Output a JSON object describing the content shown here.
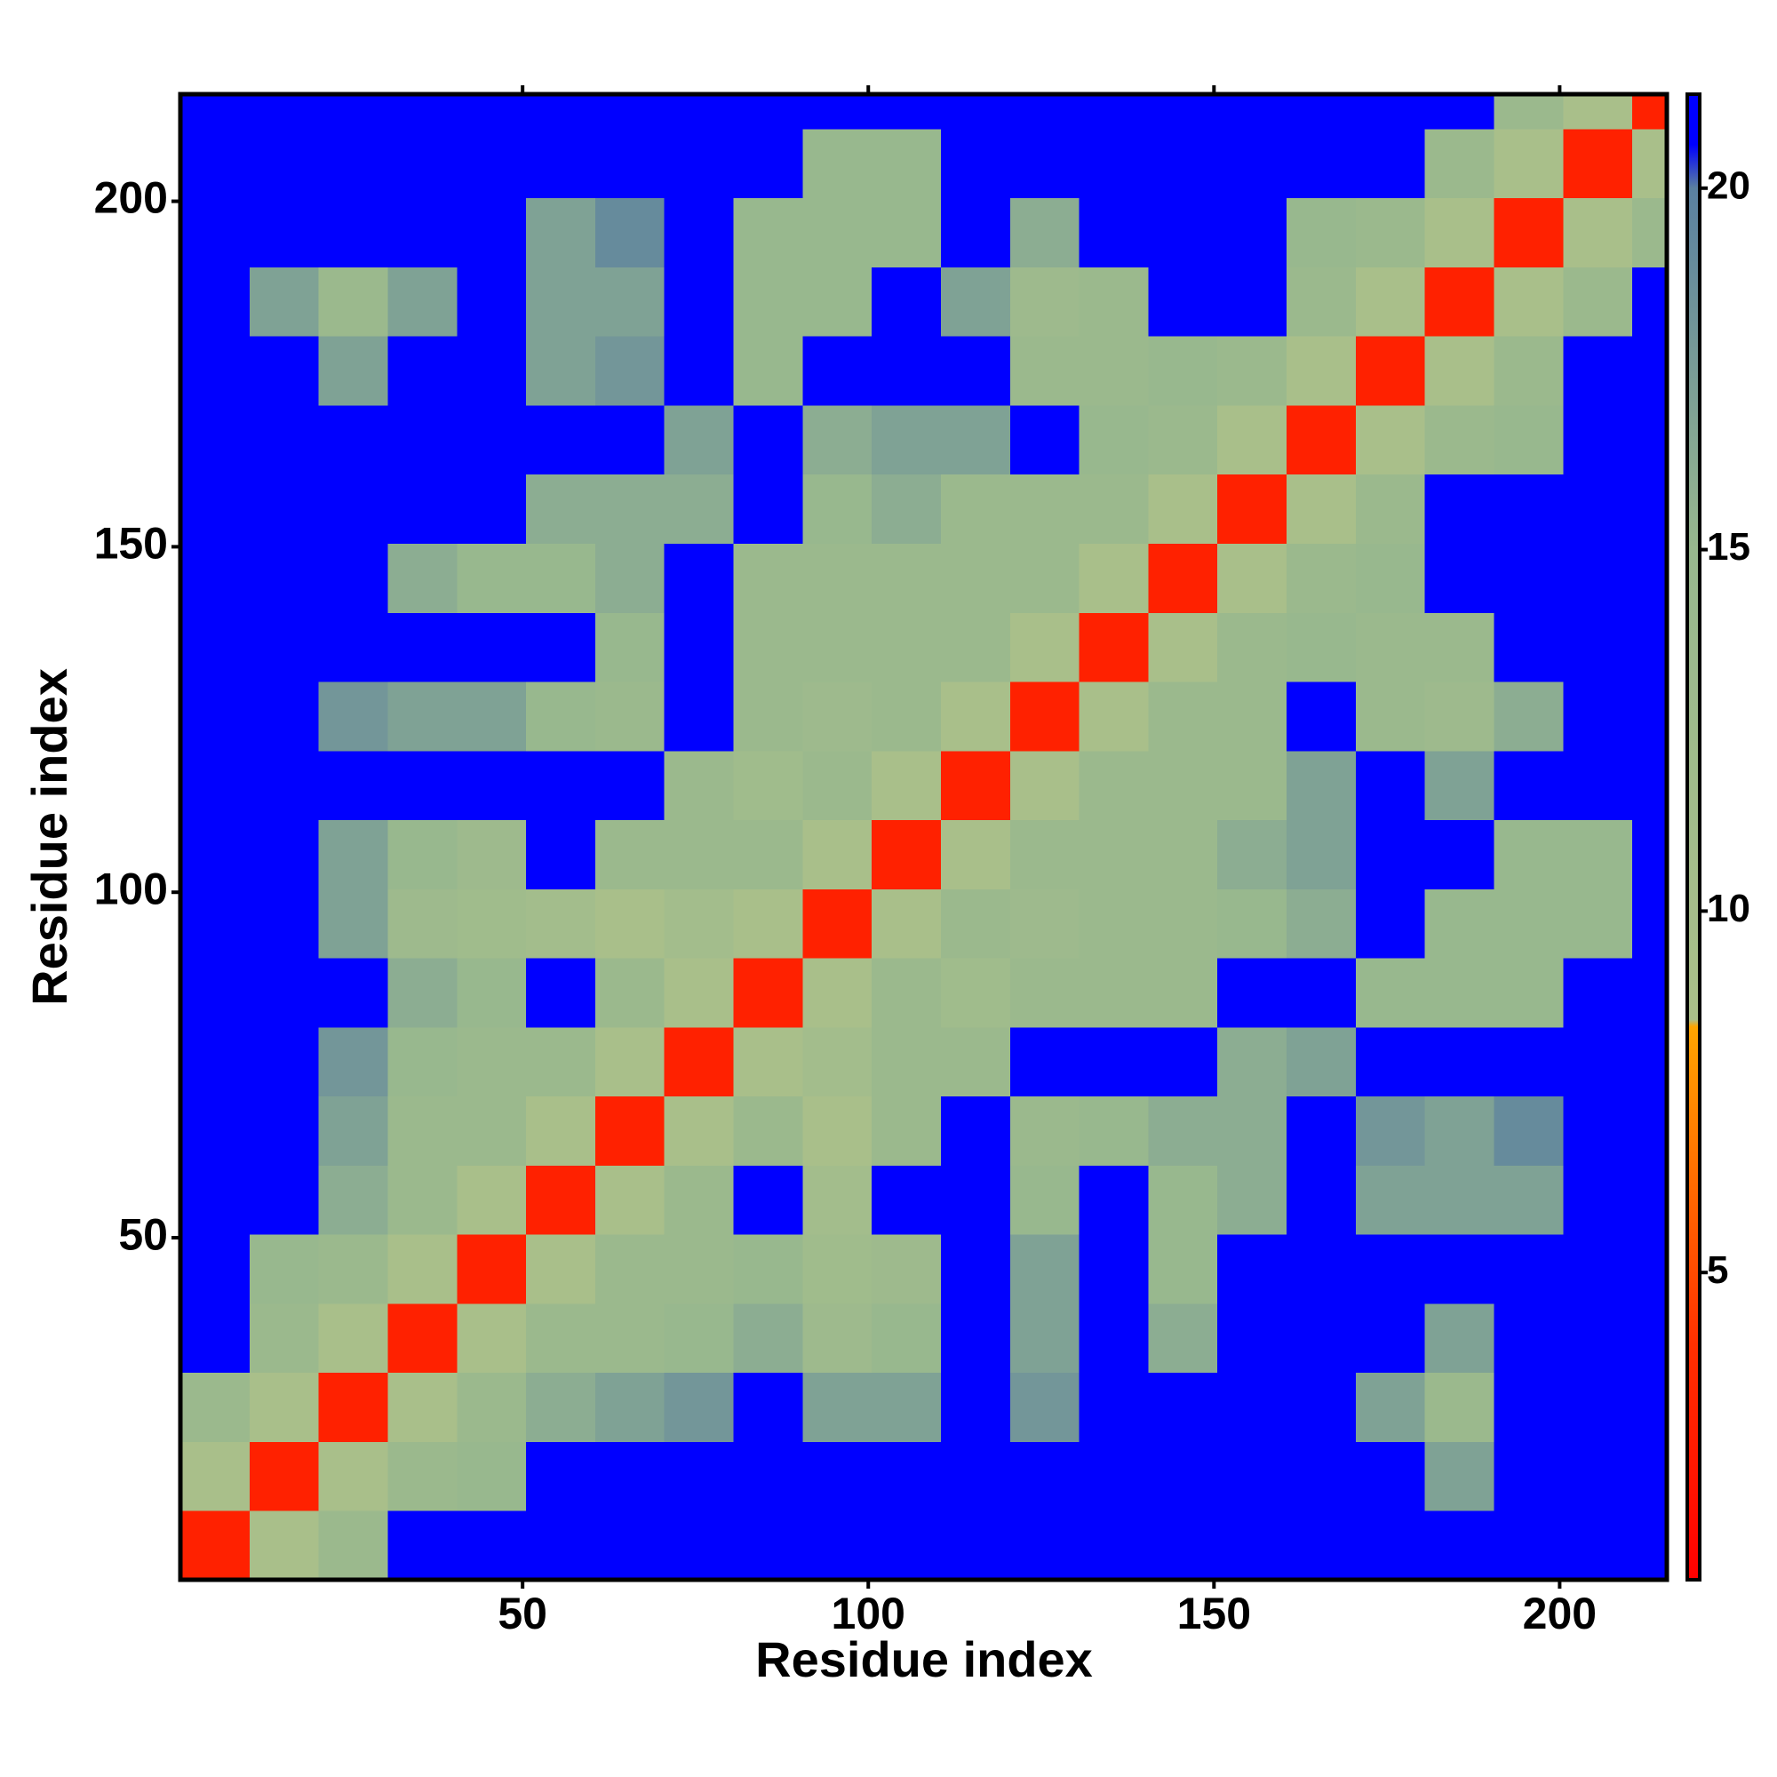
{
  "chart_data": {
    "type": "heatmap",
    "xlabel": "Residue index",
    "ylabel": "Residue index",
    "xlim": [
      0.5,
      215.5
    ],
    "ylim": [
      0.5,
      215.5
    ],
    "xticks": [
      50,
      100,
      150,
      200
    ],
    "yticks": [
      50,
      100,
      150,
      200
    ],
    "xbins": [
      0.5,
      10.5,
      20.5,
      30.5,
      40.5,
      50.5,
      60.5,
      70.5,
      80.5,
      90.5,
      100.5,
      110.5,
      120.5,
      130.5,
      140.5,
      150.5,
      160.5,
      170.5,
      180.5,
      190.5,
      200.5,
      210.5,
      215.5
    ],
    "ybins": [
      0.5,
      10.5,
      20.5,
      30.5,
      40.5,
      50.5,
      60.5,
      70.5,
      80.5,
      90.5,
      100.5,
      110.5,
      120.5,
      130.5,
      140.5,
      150.5,
      160.5,
      170.5,
      180.5,
      190.5,
      200.5,
      210.5,
      215.5
    ],
    "z": [
      [
        3,
        9,
        14,
        21,
        21,
        21,
        21,
        21,
        21,
        21,
        21,
        21,
        21,
        21,
        21,
        21,
        21,
        21,
        21,
        21,
        21,
        21
      ],
      [
        9,
        3,
        9,
        14,
        15,
        21,
        21,
        21,
        21,
        21,
        21,
        21,
        21,
        21,
        21,
        21,
        21,
        21,
        17,
        21,
        21,
        21
      ],
      [
        14,
        9,
        3,
        9,
        14,
        16,
        17,
        18,
        21,
        17,
        17,
        21,
        18,
        21,
        21,
        21,
        21,
        17,
        14,
        21,
        21,
        21
      ],
      [
        21,
        14,
        9,
        3,
        9,
        14,
        14,
        15,
        16,
        13,
        15,
        21,
        17,
        21,
        16,
        21,
        21,
        21,
        17,
        21,
        21,
        21
      ],
      [
        21,
        15,
        14,
        9,
        3,
        9,
        14,
        14,
        15,
        12,
        13,
        21,
        17,
        21,
        15,
        21,
        21,
        21,
        21,
        21,
        21,
        21
      ],
      [
        21,
        21,
        16,
        14,
        9,
        3,
        9,
        14,
        21,
        11,
        21,
        21,
        15,
        21,
        15,
        16,
        21,
        17,
        17,
        17,
        21,
        21
      ],
      [
        21,
        21,
        17,
        14,
        14,
        9,
        3,
        9,
        14,
        9,
        14,
        21,
        14,
        15,
        16,
        16,
        21,
        18,
        17,
        19,
        21,
        21
      ],
      [
        21,
        21,
        18,
        15,
        14,
        14,
        9,
        3,
        9,
        11,
        14,
        14,
        21,
        21,
        21,
        16,
        17,
        21,
        21,
        21,
        21,
        21
      ],
      [
        21,
        21,
        21,
        16,
        15,
        21,
        14,
        9,
        3,
        9,
        14,
        12,
        14,
        14,
        14,
        21,
        21,
        15,
        15,
        15,
        21,
        21
      ],
      [
        21,
        21,
        17,
        13,
        12,
        11,
        9,
        11,
        9,
        3,
        9,
        14,
        13,
        14,
        14,
        15,
        16,
        21,
        15,
        15,
        15,
        21
      ],
      [
        21,
        21,
        17,
        15,
        13,
        21,
        14,
        14,
        14,
        9,
        3,
        9,
        14,
        14,
        14,
        16,
        17,
        21,
        21,
        15,
        15,
        21
      ],
      [
        21,
        21,
        21,
        21,
        21,
        21,
        21,
        14,
        12,
        14,
        9,
        3,
        9,
        14,
        14,
        14,
        17,
        21,
        17,
        21,
        21,
        21
      ],
      [
        21,
        21,
        18,
        17,
        17,
        15,
        14,
        21,
        14,
        13,
        14,
        9,
        3,
        9,
        14,
        14,
        21,
        14,
        13,
        16,
        21,
        21
      ],
      [
        21,
        21,
        21,
        21,
        21,
        21,
        15,
        21,
        14,
        14,
        14,
        14,
        9,
        3,
        9,
        14,
        15,
        14,
        14,
        21,
        21,
        21
      ],
      [
        21,
        21,
        21,
        16,
        15,
        15,
        16,
        21,
        14,
        14,
        14,
        14,
        14,
        9,
        3,
        9,
        14,
        15,
        21,
        21,
        21,
        21
      ],
      [
        21,
        21,
        21,
        21,
        21,
        16,
        16,
        16,
        21,
        15,
        16,
        14,
        14,
        14,
        9,
        3,
        9,
        14,
        21,
        21,
        21,
        21
      ],
      [
        21,
        21,
        21,
        21,
        21,
        21,
        21,
        17,
        21,
        16,
        17,
        17,
        21,
        15,
        14,
        9,
        3,
        9,
        14,
        15,
        21,
        21
      ],
      [
        21,
        21,
        17,
        21,
        21,
        17,
        18,
        21,
        15,
        21,
        21,
        21,
        14,
        14,
        15,
        14,
        9,
        3,
        9,
        14,
        21,
        21
      ],
      [
        21,
        17,
        14,
        17,
        21,
        17,
        17,
        21,
        15,
        15,
        21,
        17,
        13,
        14,
        21,
        21,
        14,
        9,
        3,
        9,
        14,
        21
      ],
      [
        21,
        21,
        21,
        21,
        21,
        17,
        19,
        21,
        15,
        15,
        15,
        21,
        16,
        21,
        21,
        21,
        15,
        14,
        9,
        3,
        9,
        14
      ],
      [
        21,
        21,
        21,
        21,
        21,
        21,
        21,
        21,
        21,
        15,
        15,
        21,
        21,
        21,
        21,
        21,
        21,
        21,
        14,
        9,
        3,
        9
      ],
      [
        21,
        21,
        21,
        21,
        21,
        21,
        21,
        21,
        21,
        21,
        21,
        21,
        21,
        21,
        21,
        21,
        21,
        21,
        21,
        14,
        9,
        3
      ]
    ],
    "zlim": [
      0.75,
      21.3
    ],
    "zticks": [
      5,
      10,
      15,
      20
    ],
    "colorscale": [
      [
        0.75,
        "#ff0000"
      ],
      [
        4,
        "#ff3000"
      ],
      [
        8.4,
        "#ffa500"
      ],
      [
        8.5,
        "#aac08a"
      ],
      [
        15,
        "#98b88e"
      ],
      [
        20,
        "#5a80a0"
      ],
      [
        20.6,
        "#0000ff"
      ],
      [
        21.3,
        "#0000ff"
      ]
    ]
  }
}
